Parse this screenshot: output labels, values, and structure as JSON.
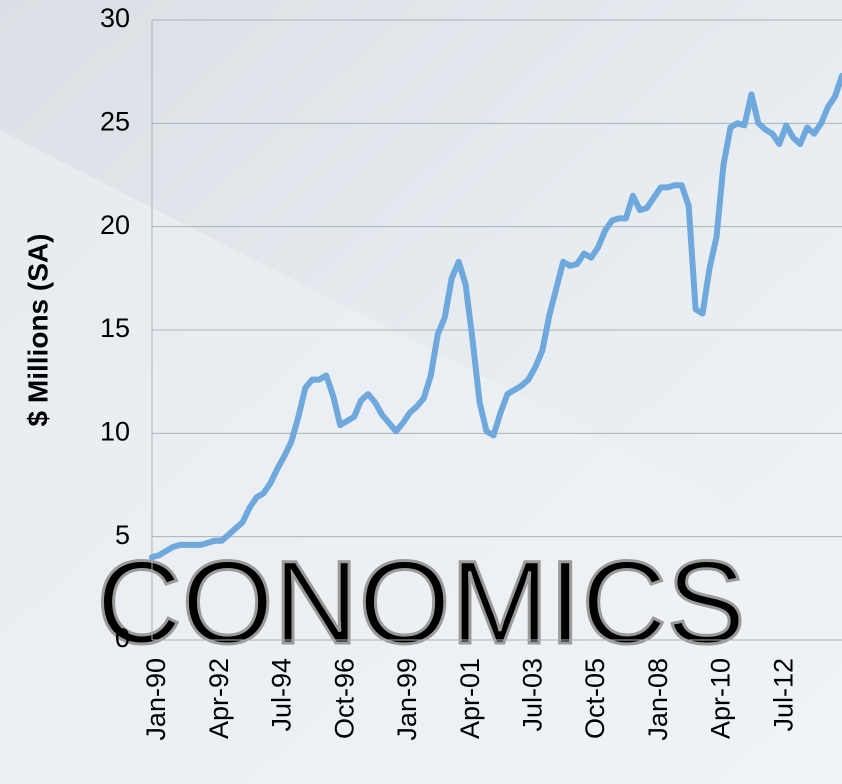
{
  "chart_data": {
    "type": "line",
    "y_label": "$ Millions (SA)",
    "watermark": "CONOMICS",
    "categories": [
      "Jan-90",
      null,
      null,
      null,
      null,
      null,
      null,
      null,
      null,
      "Apr-92",
      null,
      null,
      null,
      null,
      null,
      null,
      null,
      null,
      "Jul-94",
      null,
      null,
      null,
      null,
      null,
      null,
      null,
      null,
      "Oct-96",
      null,
      null,
      null,
      null,
      null,
      null,
      null,
      null,
      "Jan-99",
      null,
      null,
      null,
      null,
      null,
      null,
      null,
      null,
      "Apr-01",
      null,
      null,
      null,
      null,
      null,
      null,
      null,
      null,
      "Jul-03",
      null,
      null,
      null,
      null,
      null,
      null,
      null,
      null,
      "Oct-05",
      null,
      null,
      null,
      null,
      null,
      null,
      null,
      null,
      "Jan-08",
      null,
      null,
      null,
      null,
      null,
      null,
      null,
      null,
      "Apr-10",
      null,
      null,
      null,
      null,
      null,
      null,
      null,
      null,
      "Jul-12",
      null,
      null,
      null,
      null,
      null,
      null,
      null,
      null,
      null
    ],
    "values": [
      4.0,
      4.1,
      4.3,
      4.5,
      4.6,
      4.6,
      4.6,
      4.6,
      4.7,
      4.8,
      4.8,
      5.1,
      5.4,
      5.7,
      6.4,
      6.9,
      7.1,
      7.6,
      8.3,
      8.9,
      9.6,
      10.8,
      12.2,
      12.6,
      12.6,
      12.8,
      11.8,
      10.4,
      10.6,
      10.8,
      11.6,
      11.9,
      11.5,
      10.9,
      10.5,
      10.1,
      10.5,
      11.0,
      11.3,
      11.7,
      12.8,
      14.8,
      15.6,
      17.5,
      18.3,
      17.2,
      14.5,
      11.5,
      10.1,
      9.9,
      11.0,
      11.9,
      12.1,
      12.3,
      12.6,
      13.2,
      14.0,
      15.7,
      17.0,
      18.3,
      18.1,
      18.2,
      18.7,
      18.5,
      19.0,
      19.8,
      20.3,
      20.4,
      20.4,
      21.5,
      20.8,
      20.9,
      21.4,
      21.9,
      21.9,
      22.0,
      22.0,
      21.0,
      16.0,
      15.8,
      18.0,
      19.5,
      23.0,
      24.8,
      25.0,
      24.9,
      26.4,
      25.0,
      24.7,
      24.5,
      24.0,
      24.9,
      24.3,
      24.0,
      24.8,
      24.5,
      25.0,
      25.8,
      26.3,
      27.3
    ],
    "color": "#6fa8dc",
    "ylim": [
      0,
      30
    ],
    "yticks": [
      0,
      5,
      10,
      15,
      20,
      25,
      30
    ],
    "grid": true
  }
}
